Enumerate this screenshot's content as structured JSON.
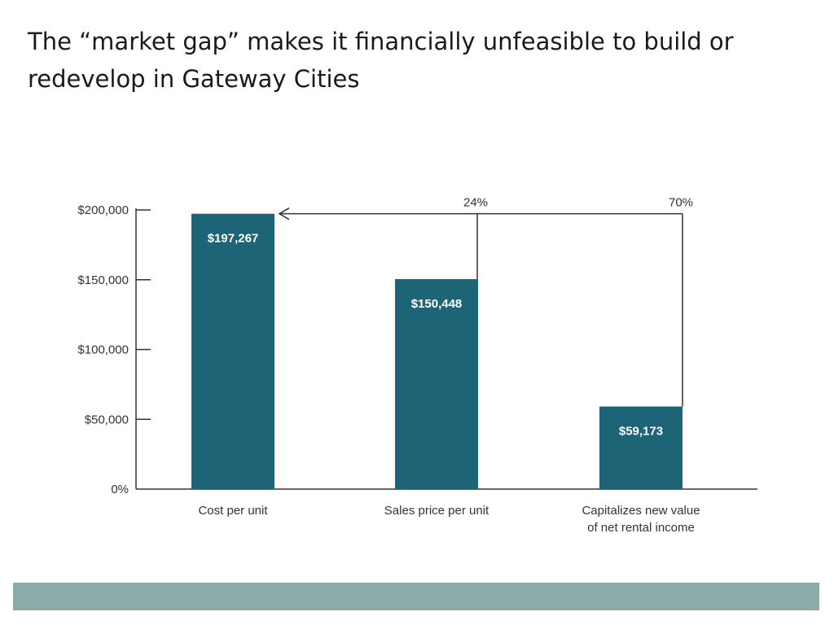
{
  "title": "The “market gap” makes it financially unfeasible to build or redevelop in Gateway Cities",
  "colors": {
    "bar": "#1e6477",
    "axis": "#333333",
    "footer": "#8cacaa"
  },
  "chart_data": {
    "type": "bar",
    "title": "",
    "xlabel": "",
    "ylabel": "",
    "ylim": [
      0,
      200000
    ],
    "y_ticks": [
      {
        "value": 0,
        "label": "0%"
      },
      {
        "value": 50000,
        "label": "$50,000"
      },
      {
        "value": 100000,
        "label": "$100,000"
      },
      {
        "value": 150000,
        "label": "$150,000"
      },
      {
        "value": 200000,
        "label": "$200,000"
      }
    ],
    "categories": [
      [
        "Cost per unit"
      ],
      [
        "Sales price per unit"
      ],
      [
        "Capitalizes new value",
        "of net rental income"
      ]
    ],
    "values": [
      197267,
      150448,
      59173
    ],
    "data_labels": [
      "$197,267",
      "$150,448",
      "$59,173"
    ],
    "annotations": [
      {
        "label": "24%",
        "from_index": 1,
        "to_index": 0
      },
      {
        "label": "70%",
        "from_index": 2,
        "to_index": 0
      }
    ]
  }
}
